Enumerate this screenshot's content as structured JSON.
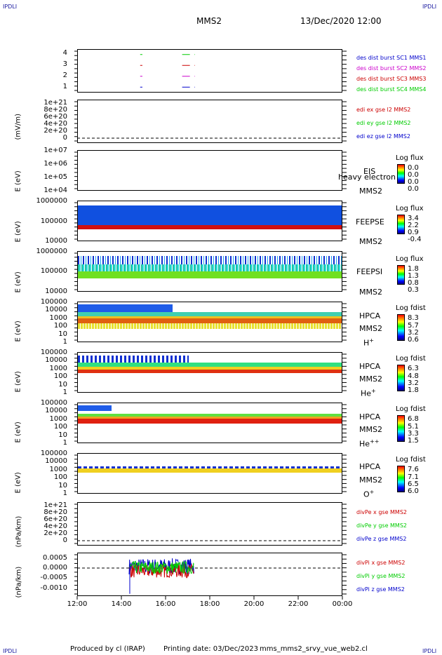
{
  "header": {
    "corner_tl": "IPDLI",
    "corner_tr": "IPDLI",
    "corner_bl": "IPDLI",
    "corner_br": "IPDLI",
    "mission": "MMS2",
    "datetime": "13/Dec/2020 12:00"
  },
  "footer": {
    "produced_by": "Produced by cl (IRAP)",
    "printing_date": "Printing date: 03/Dec/2023",
    "filename": "mms_mms2_srvy_vue_web2.cl"
  },
  "colors": {
    "sc1": "#0000cc",
    "sc2": "#cc00cc",
    "sc3": "#cc0000",
    "sc4": "#00cc00",
    "x_comp": "#cc0000",
    "y_comp": "#00cc00",
    "z_comp": "#0000cc"
  },
  "chart_data": [
    {
      "type": "line",
      "ylim": [
        0.5,
        4.5
      ],
      "yticks": [
        "4",
        "3",
        "2",
        "1"
      ],
      "series": [
        {
          "name": "des dist burst SC1 MMS1",
          "y": 1,
          "segments": [
            [
              14.85,
              14.95
            ],
            [
              16.75,
              17.1
            ],
            [
              17.3,
              17.32
            ]
          ]
        },
        {
          "name": "des dist burst SC2 MMS2",
          "y": 2,
          "segments": [
            [
              14.85,
              14.95
            ],
            [
              16.75,
              17.1
            ],
            [
              17.3,
              17.32
            ]
          ]
        },
        {
          "name": "des dist burst SC3 MMS3",
          "y": 3,
          "segments": [
            [
              14.85,
              14.95
            ],
            [
              16.75,
              17.1
            ],
            [
              17.3,
              17.32
            ]
          ]
        },
        {
          "name": "des dist burst SC4 MMS4",
          "y": 4,
          "segments": [
            [
              14.85,
              14.95
            ],
            [
              16.75,
              17.1
            ],
            [
              17.3,
              17.32
            ]
          ]
        }
      ]
    },
    {
      "type": "line",
      "ylabel": "(mV/m)",
      "yticks": [
        "1e+21",
        "8e+20",
        "6e+20",
        "4e+20",
        "2e+20",
        "0"
      ],
      "ylim": [
        0,
        1e+21
      ],
      "series": [
        {
          "name": "edi ex gse l2 MMS2"
        },
        {
          "name": "edi ey gse l2 MMS2"
        },
        {
          "name": "edi ez gse l2 MMS2"
        }
      ]
    },
    {
      "type": "heatmap",
      "ylabel": "E (eV)",
      "yticks": [
        "1e+07",
        "1e+06",
        "1e+05",
        "1e+04"
      ],
      "instrument": "EIS",
      "mode": "heavy electron t",
      "spacecraft": "MMS2",
      "colorbar_title": "Log flux",
      "colorbar_ticks": [
        "0.0",
        "0.0",
        "0.0",
        "0.0"
      ]
    },
    {
      "type": "heatmap",
      "ylabel": "E (eV)",
      "yticks": [
        "1000000",
        "100000",
        "10000"
      ],
      "instrument": "FEEPSE",
      "spacecraft": "MMS2",
      "colorbar_title": "Log flux",
      "colorbar_ticks": [
        "3.4",
        "2.2",
        "0.9",
        "-0.4"
      ]
    },
    {
      "type": "heatmap",
      "ylabel": "E (eV)",
      "yticks": [
        "1000000",
        "100000",
        "10000"
      ],
      "instrument": "FEEPSI",
      "spacecraft": "MMS2",
      "colorbar_title": "Log flux",
      "colorbar_ticks": [
        "1.8",
        "1.3",
        "0.8",
        "0.3"
      ]
    },
    {
      "type": "heatmap",
      "ylabel": "E (eV)",
      "yticks": [
        "100000",
        "10000",
        "1000",
        "100",
        "10",
        "1"
      ],
      "instrument": "HPCA",
      "spacecraft": "MMS2",
      "species": "H",
      "charge": "+",
      "colorbar_title": "Log fdist",
      "colorbar_ticks": [
        "8.3",
        "5.7",
        "3.2",
        "0.6"
      ]
    },
    {
      "type": "heatmap",
      "ylabel": "E (eV)",
      "yticks": [
        "100000",
        "10000",
        "1000",
        "100",
        "10",
        "1"
      ],
      "instrument": "HPCA",
      "spacecraft": "MMS2",
      "species": "He",
      "charge": "+",
      "colorbar_title": "Log fdist",
      "colorbar_ticks": [
        "6.3",
        "4.8",
        "3.2",
        "1.8"
      ]
    },
    {
      "type": "heatmap",
      "ylabel": "E (eV)",
      "yticks": [
        "100000",
        "10000",
        "1000",
        "100",
        "10",
        "1"
      ],
      "instrument": "HPCA",
      "spacecraft": "MMS2",
      "species": "He",
      "charge": "++",
      "colorbar_title": "Log fdist",
      "colorbar_ticks": [
        "6.8",
        "5.1",
        "3.3",
        "1.5"
      ]
    },
    {
      "type": "heatmap",
      "ylabel": "E (eV)",
      "yticks": [
        "100000",
        "10000",
        "1000",
        "100",
        "10",
        "1"
      ],
      "instrument": "HPCA",
      "spacecraft": "MMS2",
      "species": "O",
      "charge": "+",
      "colorbar_title": "Log fdist",
      "colorbar_ticks": [
        "7.6",
        "7.1",
        "6.5",
        "6.0"
      ]
    },
    {
      "type": "line",
      "ylabel": "(nPa/km)",
      "yticks": [
        "1e+21",
        "8e+20",
        "6e+20",
        "4e+20",
        "2e+20",
        "0"
      ],
      "ylim": [
        0,
        1e+21
      ],
      "series": [
        {
          "name": "divPe x gse MMS2"
        },
        {
          "name": "divPe y gse MMS2"
        },
        {
          "name": "divPe z gse MMS2"
        }
      ]
    },
    {
      "type": "line",
      "ylabel": "(nPa/km)",
      "yticks": [
        "0.0005",
        "0.0000",
        "-0.0005",
        "-0.0010"
      ],
      "ylim": [
        -0.0012,
        0.0007
      ],
      "xlim": [
        14.35,
        17.3
      ],
      "series": [
        {
          "name": "divPi x gse MMS2"
        },
        {
          "name": "divPi y gse MMS2"
        },
        {
          "name": "divPi z gse MMS2"
        }
      ]
    }
  ],
  "x_axis": {
    "range_hours": [
      12,
      24
    ],
    "ticks": [
      "12:00",
      "14:00",
      "16:00",
      "18:00",
      "20:00",
      "22:00",
      "00:00"
    ]
  }
}
